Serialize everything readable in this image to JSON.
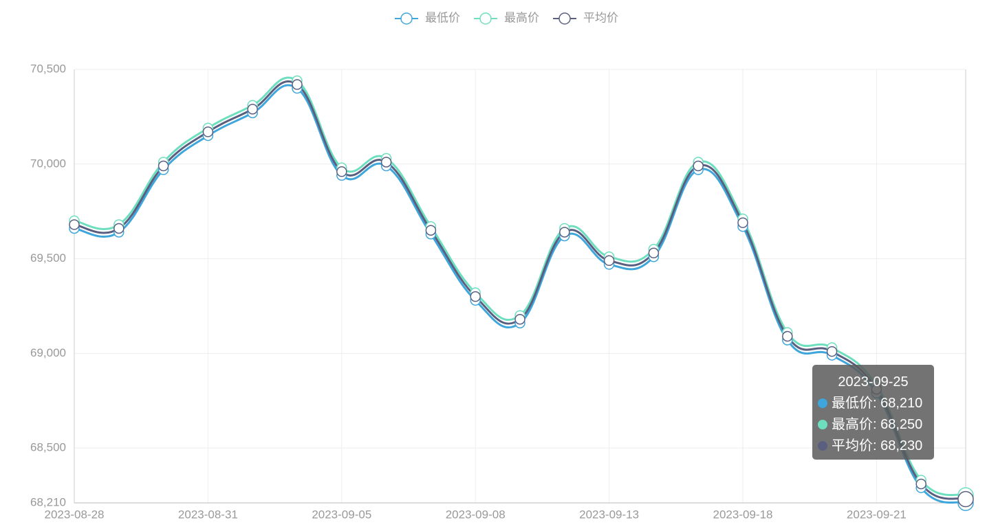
{
  "chart_data": {
    "type": "line",
    "categories": [
      "2023-08-28",
      null,
      null,
      "2023-08-31",
      null,
      null,
      "2023-09-05",
      null,
      null,
      "2023-09-08",
      null,
      null,
      "2023-09-13",
      null,
      null,
      "2023-09-18",
      null,
      null,
      "2023-09-21",
      null,
      null
    ],
    "series": [
      {
        "name": "最低价",
        "color": "#3ea6db",
        "values": [
          69660,
          69640,
          69970,
          70150,
          70270,
          70400,
          69940,
          69990,
          69630,
          69280,
          69160,
          69620,
          69470,
          69510,
          69970,
          69670,
          69070,
          68990,
          68790,
          68290,
          68210
        ]
      },
      {
        "name": "最高价",
        "color": "#6ddfbf",
        "values": [
          69700,
          69680,
          70010,
          70190,
          70310,
          70440,
          69980,
          70030,
          69670,
          69320,
          69200,
          69660,
          69510,
          69550,
          70010,
          69710,
          69110,
          69030,
          68830,
          68330,
          68250
        ]
      },
      {
        "name": "平均价",
        "color": "#5a5f80",
        "values": [
          69680,
          69660,
          69990,
          70170,
          70290,
          70420,
          69960,
          70010,
          69650,
          69300,
          69180,
          69640,
          69490,
          69530,
          69990,
          69690,
          69090,
          69010,
          68810,
          68310,
          68230
        ]
      }
    ],
    "ylim": [
      68210,
      70500
    ],
    "yticks": [
      {
        "value": 68210,
        "label": "68,210"
      },
      {
        "value": 68500,
        "label": "68,500"
      },
      {
        "value": 69000,
        "label": "69,000"
      },
      {
        "value": 69500,
        "label": "69,500"
      },
      {
        "value": 70000,
        "label": "70,000"
      },
      {
        "value": 70500,
        "label": "70,500"
      }
    ],
    "grid": true,
    "legend": "top",
    "tooltip": {
      "title": "2023-09-25",
      "value_labels": [
        "68,210",
        "68,250",
        "68,230"
      ]
    }
  }
}
